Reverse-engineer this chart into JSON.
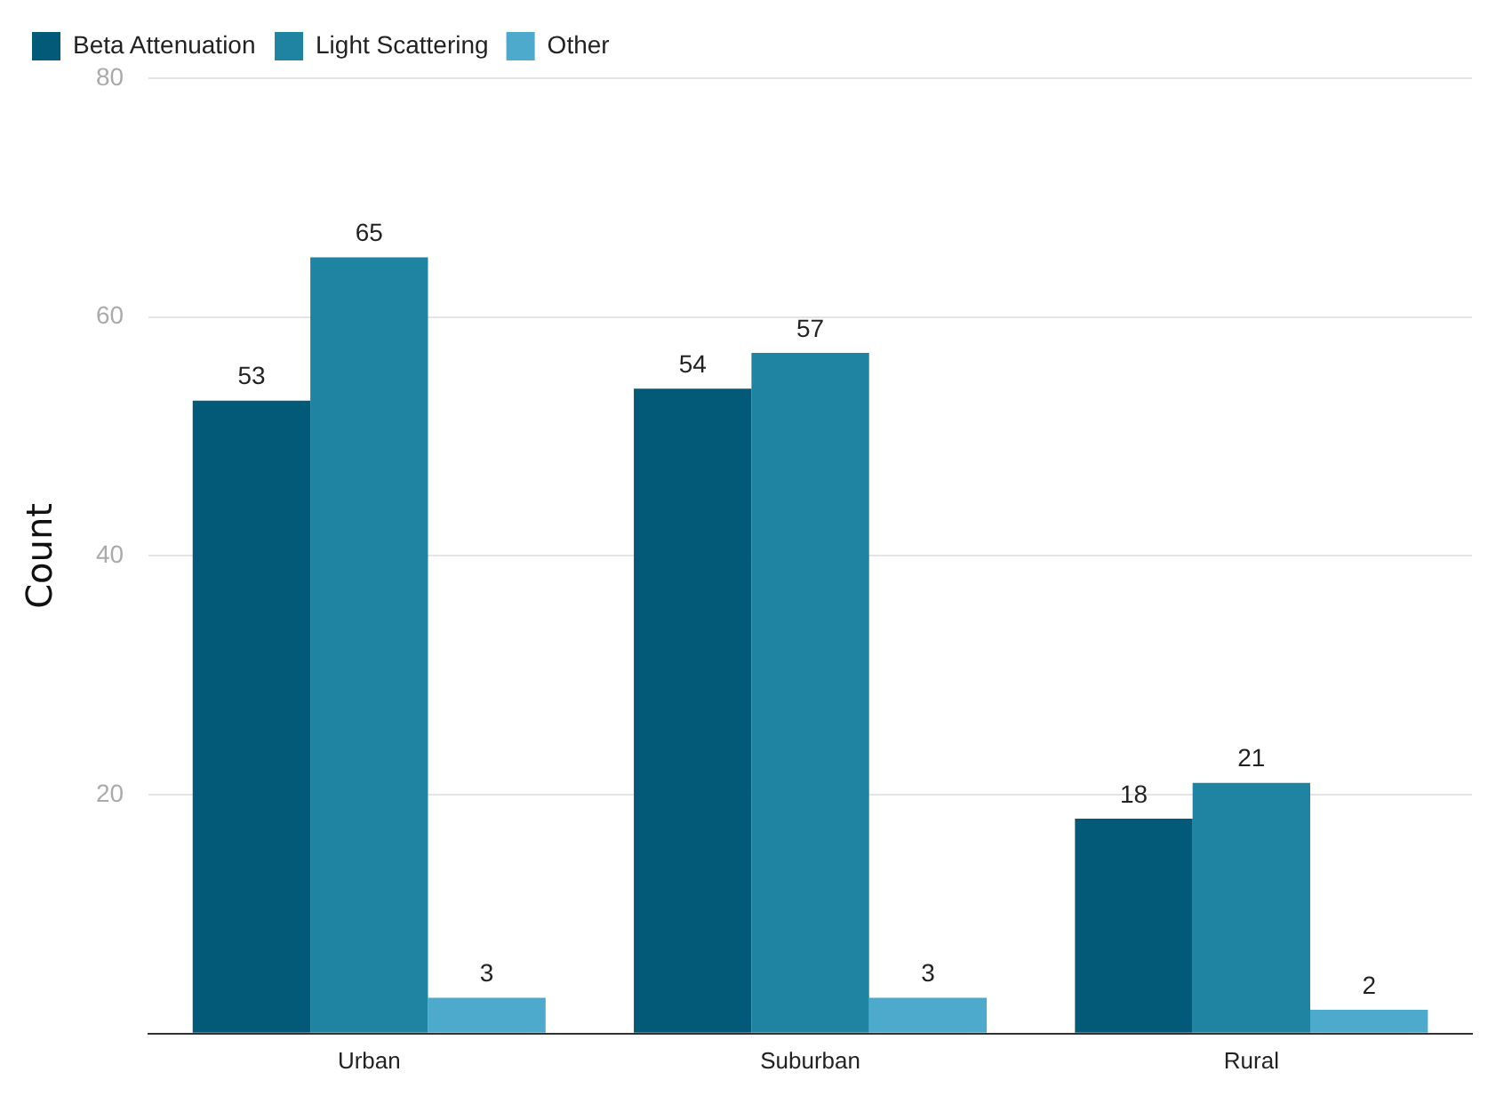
{
  "chart_data": {
    "type": "bar",
    "ylabel": "Count",
    "categories": [
      "Urban",
      "Suburban",
      "Rural"
    ],
    "series": [
      {
        "name": "Beta Attenuation",
        "color": "#035a78",
        "values": [
          53,
          54,
          18
        ]
      },
      {
        "name": "Light Scattering",
        "color": "#1f83a2",
        "values": [
          65,
          57,
          21
        ]
      },
      {
        "name": "Other",
        "color": "#4eaacd",
        "values": [
          3,
          3,
          2
        ]
      }
    ],
    "ylim": [
      0,
      80
    ],
    "yticks": [
      {
        "value": 0,
        "label": null
      },
      20,
      40,
      60,
      80
    ],
    "grid": "y",
    "legend": "top left",
    "data_labels": true
  }
}
